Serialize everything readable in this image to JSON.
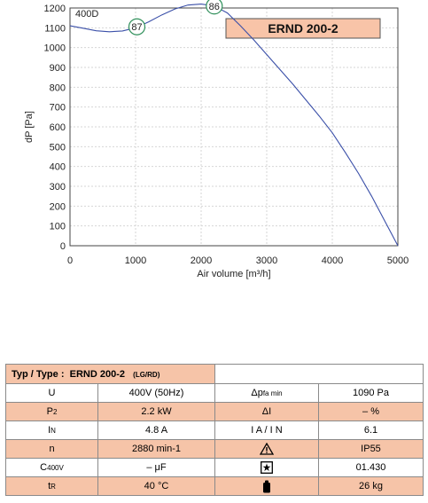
{
  "chart_data": {
    "type": "line",
    "title": "",
    "model_box": "ERND 200-2",
    "curve_label": "400D",
    "xlabel": "Air volume [m³/h]",
    "ylabel": "dP [Pa]",
    "xlim": [
      0,
      5000
    ],
    "ylim": [
      0,
      1200
    ],
    "x_ticks": [
      0,
      1000,
      2000,
      3000,
      4000,
      5000
    ],
    "y_ticks": [
      0,
      100,
      200,
      300,
      400,
      500,
      600,
      700,
      800,
      900,
      1000,
      1100,
      1200
    ],
    "grid": true,
    "series": [
      {
        "name": "",
        "x": [
          0,
          200,
          400,
          600,
          800,
          1000,
          1200,
          1400,
          1600,
          1800,
          2000,
          2200,
          2400,
          2600,
          2800,
          3000,
          3200,
          3400,
          3600,
          3800,
          4000,
          4200,
          4400,
          4600,
          4800,
          5000
        ],
        "y": [
          1110,
          1098,
          1085,
          1080,
          1084,
          1100,
          1130,
          1165,
          1195,
          1215,
          1220,
          1210,
          1175,
          1110,
          1040,
          965,
          890,
          815,
          735,
          655,
          570,
          470,
          365,
          250,
          125,
          0
        ]
      }
    ],
    "markers": [
      {
        "label": "87",
        "x": 1020,
        "y": 1105
      },
      {
        "label": "86",
        "x": 2200,
        "y": 1210
      }
    ]
  },
  "table": {
    "type_label": "Typ /  Type  :",
    "type_value": "ERND 200-2",
    "type_suffix": "(LG/RD)",
    "rows": [
      {
        "l1": "U",
        "v1": "400V (50Hz)",
        "l2": "Δp",
        "l2sub": "fa min",
        "v2": "1090 Pa",
        "shade": false
      },
      {
        "l1": "P",
        "l1sub": "2",
        "v1": "2.2 kW",
        "l2": "ΔI",
        "v2": "– %",
        "shade": true
      },
      {
        "l1": "I",
        "l1sub": "N",
        "v1": "4.8 A",
        "l2": "I A / I N",
        "v2": "6.1",
        "shade": false
      },
      {
        "l1": "n",
        "v1": "2880 min-1",
        "l2icon": "warning-triangle-icon",
        "v2": "IP55",
        "shade": true
      },
      {
        "l1": "C",
        "l1sub": "400V",
        "v1": "– μF",
        "l2icon": "boxed-star-icon",
        "v2": "01.430",
        "shade": false
      },
      {
        "l1": "t",
        "l1sub": "R",
        "v1": "40 °C",
        "l2icon": "weight-icon",
        "v2": "26 kg",
        "shade": true
      }
    ]
  }
}
